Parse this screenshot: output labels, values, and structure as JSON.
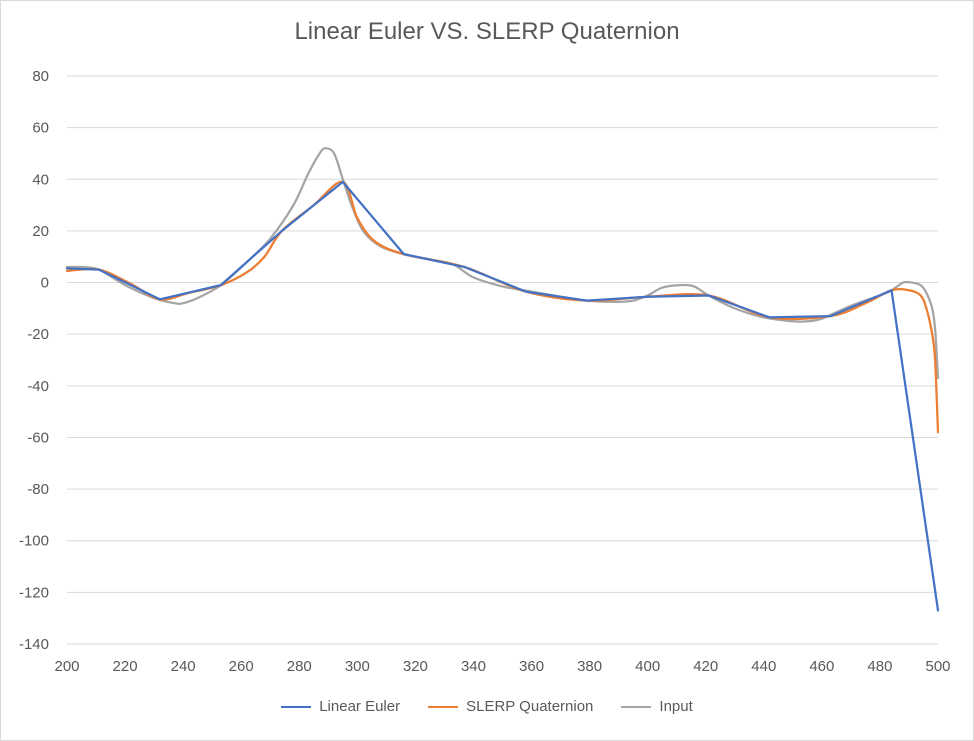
{
  "chart_data": {
    "type": "line",
    "title": "Linear Euler VS. SLERP Quaternion",
    "xlabel": "",
    "ylabel": "",
    "xlim": [
      200,
      500
    ],
    "ylim": [
      -140,
      80
    ],
    "x_ticks": [
      200,
      220,
      240,
      260,
      280,
      300,
      320,
      340,
      360,
      380,
      400,
      420,
      440,
      460,
      480,
      500
    ],
    "y_ticks": [
      80,
      60,
      40,
      20,
      0,
      -20,
      -40,
      -60,
      -80,
      -100,
      -120,
      -140
    ],
    "grid": "horizontal",
    "legend_position": "bottom",
    "series": [
      {
        "name": "Linear Euler",
        "color": "#4472c4",
        "points": [
          [
            200,
            5.5
          ],
          [
            211,
            5
          ],
          [
            232,
            -6.5
          ],
          [
            253,
            -1
          ],
          [
            274,
            20
          ],
          [
            295,
            39
          ],
          [
            316,
            11
          ],
          [
            337,
            6
          ],
          [
            358,
            -3.5
          ],
          [
            379,
            -7
          ],
          [
            400,
            -5.5
          ],
          [
            421,
            -5
          ],
          [
            442,
            -13.5
          ],
          [
            463,
            -13
          ],
          [
            484,
            -3
          ],
          [
            500,
            -127
          ]
        ]
      },
      {
        "name": "SLERP Quaternion",
        "color": "#ed7d31",
        "points": [
          [
            200,
            4.5
          ],
          [
            211,
            5
          ],
          [
            222,
            -0.5
          ],
          [
            232,
            -6.5
          ],
          [
            242,
            -4
          ],
          [
            253,
            -1
          ],
          [
            262,
            4
          ],
          [
            268,
            10
          ],
          [
            274,
            20
          ],
          [
            285,
            30
          ],
          [
            295,
            39
          ],
          [
            300,
            25
          ],
          [
            306,
            16
          ],
          [
            316,
            11
          ],
          [
            337,
            6
          ],
          [
            358,
            -3.5
          ],
          [
            379,
            -7
          ],
          [
            400,
            -5.5
          ],
          [
            421,
            -5
          ],
          [
            442,
            -13.5
          ],
          [
            463,
            -13
          ],
          [
            475,
            -8
          ],
          [
            484,
            -3
          ],
          [
            490,
            -3
          ],
          [
            494,
            -5
          ],
          [
            496,
            -10
          ],
          [
            498,
            -20
          ],
          [
            499,
            -30
          ],
          [
            500,
            -58
          ]
        ]
      },
      {
        "name": "Input",
        "color": "#a5a5a5",
        "points": [
          [
            200,
            6
          ],
          [
            205,
            6
          ],
          [
            211,
            5
          ],
          [
            220,
            -1
          ],
          [
            230,
            -6
          ],
          [
            237,
            -8
          ],
          [
            240,
            -8
          ],
          [
            245,
            -6
          ],
          [
            253,
            -1
          ],
          [
            262,
            8
          ],
          [
            270,
            17
          ],
          [
            278,
            30
          ],
          [
            283,
            42
          ],
          [
            287,
            50
          ],
          [
            289,
            52
          ],
          [
            292,
            50
          ],
          [
            295,
            40
          ],
          [
            298,
            30
          ],
          [
            302,
            20
          ],
          [
            308,
            14
          ],
          [
            316,
            11
          ],
          [
            325,
            9
          ],
          [
            333,
            7
          ],
          [
            340,
            2
          ],
          [
            350,
            -1.5
          ],
          [
            360,
            -3.5
          ],
          [
            370,
            -5.5
          ],
          [
            379,
            -7
          ],
          [
            388,
            -7.5
          ],
          [
            395,
            -7
          ],
          [
            400,
            -5
          ],
          [
            405,
            -2
          ],
          [
            411,
            -1
          ],
          [
            416,
            -1.5
          ],
          [
            421,
            -5
          ],
          [
            430,
            -10
          ],
          [
            440,
            -13.5
          ],
          [
            450,
            -15
          ],
          [
            455,
            -15
          ],
          [
            460,
            -14
          ],
          [
            470,
            -9
          ],
          [
            480,
            -5
          ],
          [
            484,
            -3
          ],
          [
            488,
            0
          ],
          [
            491,
            0
          ],
          [
            494,
            -1
          ],
          [
            496,
            -4
          ],
          [
            498,
            -10
          ],
          [
            499,
            -18
          ],
          [
            500,
            -37
          ]
        ]
      }
    ]
  }
}
